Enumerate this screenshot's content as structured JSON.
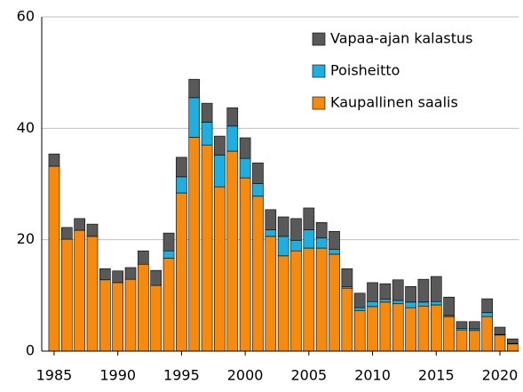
{
  "chart_data": {
    "type": "stacked_bar",
    "categories": [
      1985,
      null,
      null,
      null,
      null,
      1990,
      null,
      null,
      null,
      null,
      1995,
      null,
      null,
      null,
      null,
      2000,
      null,
      null,
      null,
      null,
      2005,
      null,
      null,
      null,
      null,
      2010,
      null,
      null,
      null,
      null,
      2015,
      null,
      null,
      null,
      null,
      2020,
      null
    ],
    "series": [
      {
        "name": "Kaupallinen saalis",
        "color": "#f7890c",
        "values": [
          33.2,
          20.1,
          21.7,
          20.6,
          12.8,
          12.3,
          12.9,
          15.6,
          11.8,
          16.7,
          28.4,
          38.4,
          37.0,
          29.5,
          35.9,
          31.1,
          27.8,
          20.6,
          17.1,
          18.0,
          18.5,
          18.5,
          17.4,
          11.3,
          7.3,
          8.0,
          8.8,
          8.5,
          7.8,
          8.1,
          8.3,
          6.2,
          3.8,
          3.7,
          6.2,
          2.9,
          1.3
        ]
      },
      {
        "name": "Poisheitto",
        "color": "#1eaee0",
        "values": [
          0,
          0,
          0,
          0,
          0,
          0,
          0,
          0,
          0,
          1.3,
          2.9,
          7.1,
          4.1,
          5.7,
          4.5,
          3.5,
          2.3,
          1.2,
          3.5,
          1.9,
          3.3,
          1.8,
          0.9,
          0.3,
          0.5,
          0.9,
          0.5,
          0.6,
          1.0,
          0.7,
          0.6,
          0.2,
          0.3,
          0.3,
          0.7,
          0.1,
          0.1
        ]
      },
      {
        "name": "Vapaa-ajan kalastus",
        "color": "#595959",
        "values": [
          2.2,
          2.1,
          2.1,
          2.2,
          2.0,
          2.1,
          2.1,
          2.4,
          2.7,
          3.2,
          3.5,
          3.3,
          3.4,
          3.4,
          3.3,
          3.7,
          3.7,
          3.6,
          3.5,
          3.9,
          3.9,
          2.8,
          3.2,
          3.2,
          2.6,
          3.4,
          2.8,
          3.7,
          2.8,
          4.1,
          4.5,
          3.3,
          1.2,
          1.3,
          2.5,
          1.3,
          0.8
        ]
      }
    ],
    "ylim": [
      0,
      60
    ],
    "yticks": [
      0,
      20,
      40,
      60
    ],
    "grid": true,
    "legend": "top-right"
  }
}
